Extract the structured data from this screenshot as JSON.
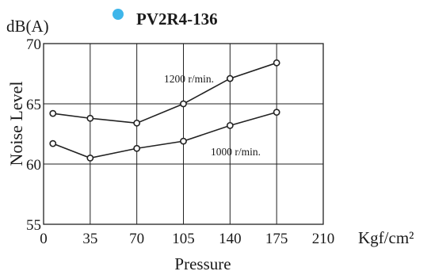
{
  "chart_data": {
    "type": "line",
    "title": "PV2R4-136",
    "legend_marker_color": "#3fb6ea",
    "ylabel": "Noise Level",
    "y_unit": "dB(A)",
    "xlabel": "Pressure",
    "x_unit": "Kgf/cm²",
    "xlim": [
      0,
      210
    ],
    "ylim": [
      55,
      70
    ],
    "x_ticks": [
      0,
      35,
      70,
      105,
      140,
      175,
      210
    ],
    "y_ticks": [
      55,
      60,
      65,
      70
    ],
    "grid": true,
    "series": [
      {
        "name": "1200 r/min.",
        "x": [
          7,
          35,
          70,
          105,
          140,
          175
        ],
        "y": [
          64.2,
          63.8,
          63.4,
          65.0,
          67.1,
          68.4
        ]
      },
      {
        "name": "1000 r/min.",
        "x": [
          7,
          35,
          70,
          105,
          140,
          175
        ],
        "y": [
          61.7,
          60.5,
          61.3,
          61.9,
          63.2,
          64.3
        ]
      }
    ]
  }
}
